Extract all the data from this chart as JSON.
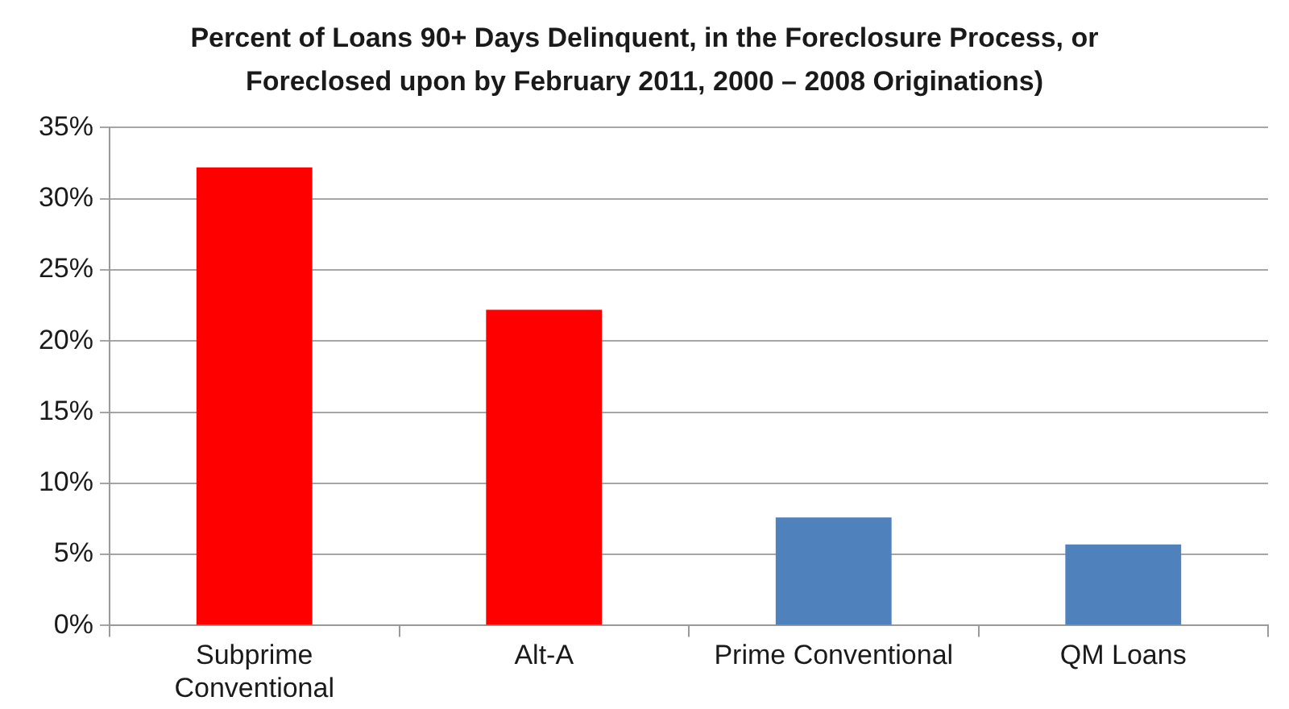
{
  "chart_data": {
    "type": "bar",
    "title": "Percent of Loans 90+ Days Delinquent, in the Foreclosure Process, or Foreclosed upon by February 2011, 2000 – 2008 Originations)",
    "categories": [
      "Subprime Conventional",
      "Alt-A",
      "Prime Conventional",
      "QM Loans"
    ],
    "values": [
      32.2,
      22.2,
      7.6,
      5.7
    ],
    "colors": [
      "#ff0000",
      "#ff0000",
      "#4f81bd",
      "#4f81bd"
    ],
    "ylim": [
      0,
      35
    ],
    "yticks": [
      {
        "value": 0,
        "label": "0%"
      },
      {
        "value": 5,
        "label": "5%"
      },
      {
        "value": 10,
        "label": "10%"
      },
      {
        "value": 15,
        "label": "15%"
      },
      {
        "value": 20,
        "label": "20%"
      },
      {
        "value": 25,
        "label": "25%"
      },
      {
        "value": 30,
        "label": "30%"
      },
      {
        "value": 35,
        "label": "35%"
      }
    ],
    "grid": "y"
  }
}
